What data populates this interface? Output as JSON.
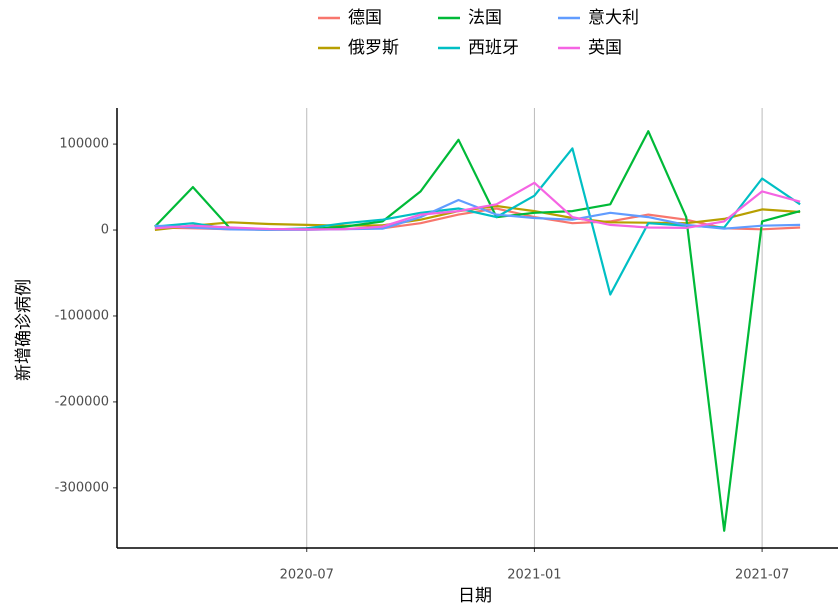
{
  "chart_data": {
    "type": "line",
    "x_label": "日期",
    "y_label": "新增确诊病例",
    "x": [
      "2020-03",
      "2020-04",
      "2020-05",
      "2020-06",
      "2020-07",
      "2020-08",
      "2020-09",
      "2020-10",
      "2020-11",
      "2020-12",
      "2021-01",
      "2021-02",
      "2021-03",
      "2021-04",
      "2021-05",
      "2021-06",
      "2021-07",
      "2021-08"
    ],
    "series": [
      {
        "name": "德国",
        "color": "#F8766D",
        "values": [
          3000,
          2000,
          800,
          500,
          500,
          1200,
          2000,
          8000,
          18000,
          25000,
          15000,
          8000,
          10000,
          18000,
          12000,
          2000,
          800,
          3000
        ]
      },
      {
        "name": "俄罗斯",
        "color": "#B79F00",
        "values": [
          100,
          5000,
          9000,
          7000,
          6000,
          5000,
          5500,
          12000,
          22000,
          28000,
          22000,
          14000,
          9000,
          8500,
          8000,
          13000,
          24000,
          21000
        ]
      },
      {
        "name": "法国",
        "color": "#00BA38",
        "values": [
          4000,
          50000,
          1000,
          500,
          800,
          4000,
          10000,
          45000,
          105000,
          15000,
          20000,
          22000,
          30000,
          115000,
          15000,
          -350000,
          10000,
          22000
        ]
      },
      {
        "name": "西班牙",
        "color": "#00BFC4",
        "values": [
          4000,
          8000,
          1000,
          500,
          2000,
          8000,
          12000,
          20000,
          25000,
          15000,
          40000,
          95000,
          -75000,
          8000,
          5000,
          3000,
          60000,
          30000
        ]
      },
      {
        "name": "意大利",
        "color": "#619CFF",
        "values": [
          5000,
          3000,
          700,
          300,
          300,
          1000,
          1500,
          15000,
          35000,
          18000,
          14000,
          12000,
          20000,
          15000,
          6000,
          1500,
          5000,
          6000
        ]
      },
      {
        "name": "英国",
        "color": "#F564E3",
        "values": [
          2000,
          5000,
          3000,
          1200,
          700,
          1000,
          4000,
          18000,
          22000,
          30000,
          55000,
          15000,
          6000,
          3000,
          2500,
          10000,
          45000,
          33000
        ]
      }
    ],
    "xlim": [
      "2020-02",
      "2021-09"
    ],
    "xticks": [
      "2020-07",
      "2021-01",
      "2021-07"
    ],
    "ylim": [
      -370000,
      142000
    ],
    "yticks": [
      -300000,
      -200000,
      -100000,
      0,
      100000
    ],
    "grid": "x",
    "legend": "top"
  }
}
